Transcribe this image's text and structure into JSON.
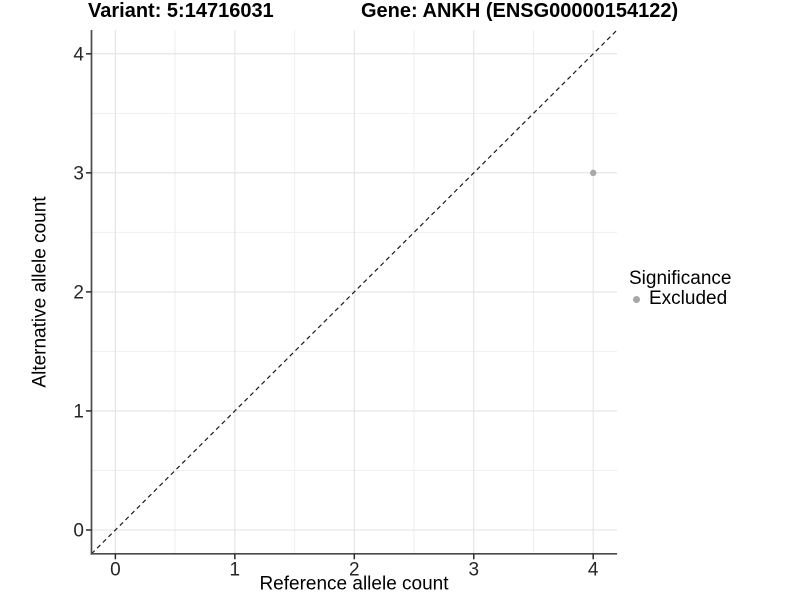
{
  "titles": {
    "variant": "Variant: 5:14716031",
    "gene": "Gene: ANKH (ENSG00000154122)"
  },
  "chart_data": {
    "type": "scatter",
    "xlabel": "Reference allele count",
    "ylabel": "Alternative allele count",
    "xlim": [
      -0.2,
      4.2
    ],
    "ylim": [
      -0.2,
      4.2
    ],
    "xticks": [
      0,
      1,
      2,
      3,
      4
    ],
    "yticks": [
      0,
      1,
      2,
      3,
      4
    ],
    "minor_gridlines_at": [
      0.5,
      1.5,
      2.5,
      3.5
    ],
    "grid": true,
    "points": [
      {
        "x": 4,
        "y": 3,
        "significance": "Excluded"
      }
    ],
    "reference_line": {
      "equation": "y = x",
      "style": "dashed",
      "from": [
        -0.2,
        -0.2
      ],
      "to": [
        4.2,
        4.2
      ]
    },
    "legend": {
      "title": "Significance",
      "position": "right",
      "entries": [
        {
          "label": "Excluded",
          "color": "#a8a8a8"
        }
      ]
    },
    "colors": {
      "point": "#a8a8a8",
      "grid_major": "#e3e3e3",
      "grid_minor": "#efefef",
      "axis_line": "#4a4a4a",
      "tick_mark": "#2b2b2b",
      "tick_text": "#262626",
      "dashed_line": "#1a1a1a",
      "background": "#ffffff"
    }
  }
}
